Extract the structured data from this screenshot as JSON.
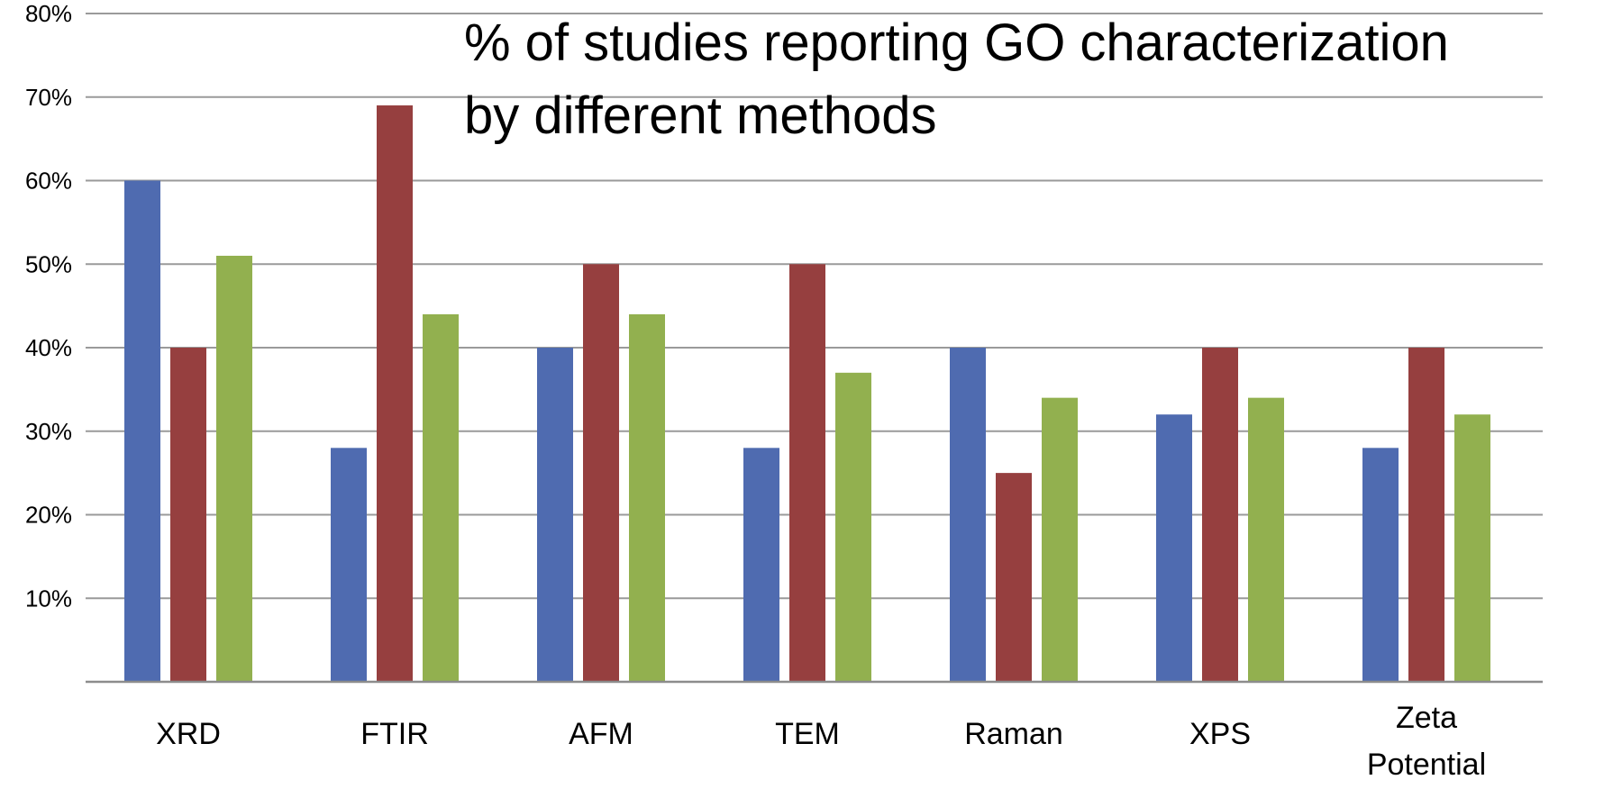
{
  "chart_data": {
    "type": "bar",
    "title_lines": [
      "% of studies reporting GO characterization",
      "by different methods"
    ],
    "categories": [
      [
        "XRD"
      ],
      [
        "FTIR"
      ],
      [
        "AFM"
      ],
      [
        "TEM"
      ],
      [
        "Raman"
      ],
      [
        "XPS"
      ],
      [
        "Zeta",
        "Potential"
      ]
    ],
    "series": [
      {
        "color": "#4f6bb0",
        "values": [
          60,
          28,
          40,
          28,
          40,
          32,
          28
        ]
      },
      {
        "color": "#963f3f",
        "values": [
          40,
          69,
          50,
          50,
          25,
          40,
          40
        ]
      },
      {
        "color": "#92b04f",
        "values": [
          51,
          44,
          44,
          37,
          34,
          34,
          32
        ]
      }
    ],
    "ylim": [
      0,
      80
    ],
    "yticks": [
      10,
      20,
      30,
      40,
      50,
      60,
      70,
      80
    ],
    "ytick_labels": [
      "10%",
      "20%",
      "30%",
      "40%",
      "50%",
      "60%",
      "70%",
      "80%"
    ],
    "grid": true,
    "legend": "none"
  }
}
